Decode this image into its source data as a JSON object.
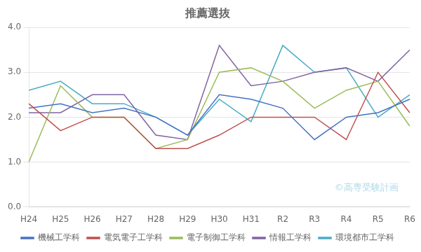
{
  "chart_data": {
    "type": "line",
    "title": "推薦選抜",
    "categories": [
      "H24",
      "H25",
      "H26",
      "H27",
      "H28",
      "H29",
      "H30",
      "H31",
      "R2",
      "R3",
      "R4",
      "R5",
      "R6"
    ],
    "series": [
      {
        "name": "機械工学科",
        "color": "#4472C4",
        "values": [
          2.2,
          2.3,
          2.1,
          2.2,
          2.0,
          1.6,
          2.5,
          2.4,
          2.2,
          1.5,
          2.0,
          2.1,
          2.4
        ]
      },
      {
        "name": "電気電子工学科",
        "color": "#C0504D",
        "values": [
          2.3,
          1.7,
          2.0,
          2.0,
          1.3,
          1.3,
          1.6,
          2.0,
          2.0,
          2.0,
          1.5,
          3.0,
          2.1
        ]
      },
      {
        "name": "電子制御工学科",
        "color": "#9BBB59",
        "values": [
          1.0,
          2.7,
          2.0,
          2.0,
          1.3,
          1.5,
          3.0,
          3.1,
          2.8,
          2.2,
          2.6,
          2.8,
          1.8
        ]
      },
      {
        "name": "情報工学科",
        "color": "#8064A2",
        "values": [
          2.1,
          2.1,
          2.5,
          2.5,
          1.6,
          1.5,
          3.6,
          2.7,
          2.8,
          3.0,
          3.1,
          2.8,
          3.5
        ]
      },
      {
        "name": "環境都市工学科",
        "color": "#4BACC6",
        "values": [
          2.6,
          2.8,
          2.3,
          2.3,
          2.0,
          1.6,
          2.4,
          1.9,
          3.6,
          3.0,
          3.1,
          2.0,
          2.5
        ]
      }
    ],
    "ylim": [
      0.0,
      4.0
    ],
    "yticks": [
      {
        "value": 0.0,
        "label": "0.0"
      },
      {
        "value": 1.0,
        "label": "1.0"
      },
      {
        "value": 2.0,
        "label": "2.0"
      },
      {
        "value": 3.0,
        "label": "3.0"
      },
      {
        "value": 4.0,
        "label": "4.0"
      }
    ],
    "grid": true,
    "legend": "bottom",
    "annotations": [
      {
        "text": "©高専受験計画",
        "color": "#ADD8E6"
      }
    ]
  }
}
